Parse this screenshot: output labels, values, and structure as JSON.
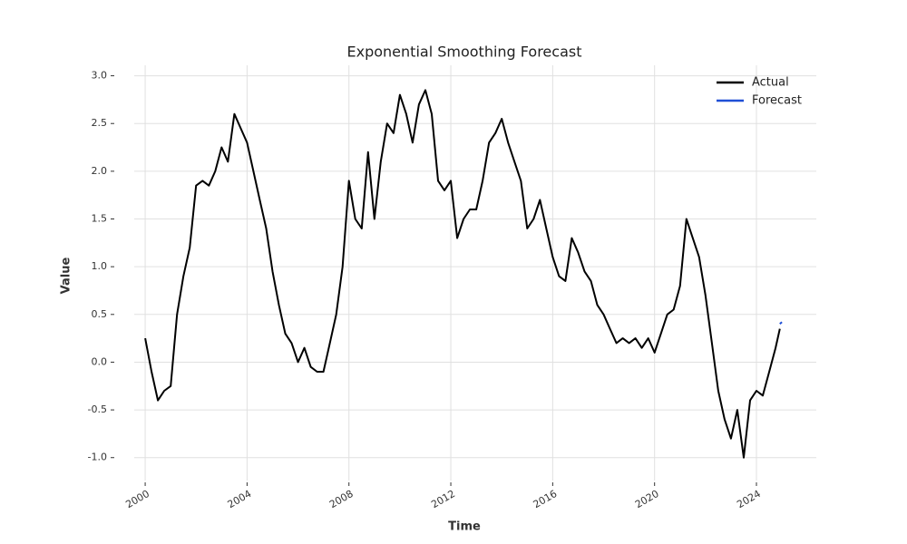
{
  "chart_data": {
    "type": "line",
    "title": "Exponential Smoothing Forecast",
    "x_label": "Time",
    "y_label": "Value",
    "series": [
      {
        "name": "Actual",
        "color": "#000000",
        "x": [
          2000.0,
          2000.25,
          2000.5,
          2000.75,
          2001.0,
          2001.25,
          2001.5,
          2001.75,
          2002.0,
          2002.25,
          2002.5,
          2002.75,
          2003.0,
          2003.25,
          2003.5,
          2003.75,
          2004.0,
          2004.25,
          2004.5,
          2004.75,
          2005.0,
          2005.25,
          2005.5,
          2005.75,
          2006.0,
          2006.25,
          2006.5,
          2006.75,
          2007.0,
          2007.25,
          2007.5,
          2007.75,
          2008.0,
          2008.25,
          2008.5,
          2008.75,
          2009.0,
          2009.25,
          2009.5,
          2009.75,
          2010.0,
          2010.25,
          2010.5,
          2010.75,
          2011.0,
          2011.25,
          2011.5,
          2011.75,
          2012.0,
          2012.25,
          2012.5,
          2012.75,
          2013.0,
          2013.25,
          2013.5,
          2013.75,
          2014.0,
          2014.25,
          2014.5,
          2014.75,
          2015.0,
          2015.25,
          2015.5,
          2015.75,
          2016.0,
          2016.25,
          2016.5,
          2016.75,
          2017.0,
          2017.25,
          2017.5,
          2017.75,
          2018.0,
          2018.25,
          2018.5,
          2018.75,
          2019.0,
          2019.25,
          2019.5,
          2019.75,
          2020.0,
          2020.25,
          2020.5,
          2020.75,
          2021.0,
          2021.25,
          2021.5,
          2021.75,
          2022.0,
          2022.25,
          2022.5,
          2022.75,
          2023.0,
          2023.25,
          2023.5,
          2023.75,
          2024.0,
          2024.25,
          2024.5,
          2024.75,
          2024.92
        ],
        "values": [
          0.25,
          -0.1,
          -0.4,
          -0.3,
          -0.25,
          0.5,
          0.9,
          1.2,
          1.85,
          1.9,
          1.85,
          2.0,
          2.25,
          2.1,
          2.6,
          2.45,
          2.3,
          2.0,
          1.7,
          1.4,
          0.95,
          0.6,
          0.3,
          0.2,
          0.0,
          0.15,
          -0.05,
          -0.1,
          -0.1,
          0.2,
          0.5,
          1.0,
          1.9,
          1.5,
          1.4,
          2.2,
          1.5,
          2.1,
          2.5,
          2.4,
          2.8,
          2.6,
          2.3,
          2.7,
          2.85,
          2.6,
          1.9,
          1.8,
          1.9,
          1.3,
          1.5,
          1.6,
          1.6,
          1.9,
          2.3,
          2.4,
          2.55,
          2.3,
          2.1,
          1.9,
          1.4,
          1.5,
          1.7,
          1.4,
          1.1,
          0.9,
          0.85,
          1.3,
          1.15,
          0.95,
          0.85,
          0.6,
          0.5,
          0.35,
          0.2,
          0.25,
          0.2,
          0.25,
          0.15,
          0.25,
          0.1,
          0.3,
          0.5,
          0.55,
          0.8,
          1.5,
          1.3,
          1.1,
          0.7,
          0.2,
          -0.3,
          -0.6,
          -0.8,
          -0.5,
          -1.0,
          -0.4,
          -0.3,
          -0.35,
          -0.1,
          0.15,
          0.35
        ]
      },
      {
        "name": "Forecast",
        "color": "#1f4fd6",
        "x": [
          2024.92,
          2025.0
        ],
        "values": [
          0.4,
          0.42
        ]
      }
    ],
    "xlim": [
      1999.57,
      2026.35
    ],
    "xticks": [
      2000,
      2004,
      2008,
      2012,
      2016,
      2020,
      2024
    ],
    "ylim": [
      -1.24,
      3.11
    ],
    "yticks": [
      {
        "value": -1,
        "label": "-1.0"
      },
      {
        "value": -0.5,
        "label": "-0.5"
      },
      {
        "value": 0,
        "label": "0.0"
      },
      0.5,
      {
        "value": 1,
        "label": "1.0"
      },
      1.5,
      {
        "value": 2,
        "label": "2.0"
      },
      2.5,
      {
        "value": 3,
        "label": "3.0"
      }
    ],
    "grid": true,
    "legend": "upper right"
  }
}
